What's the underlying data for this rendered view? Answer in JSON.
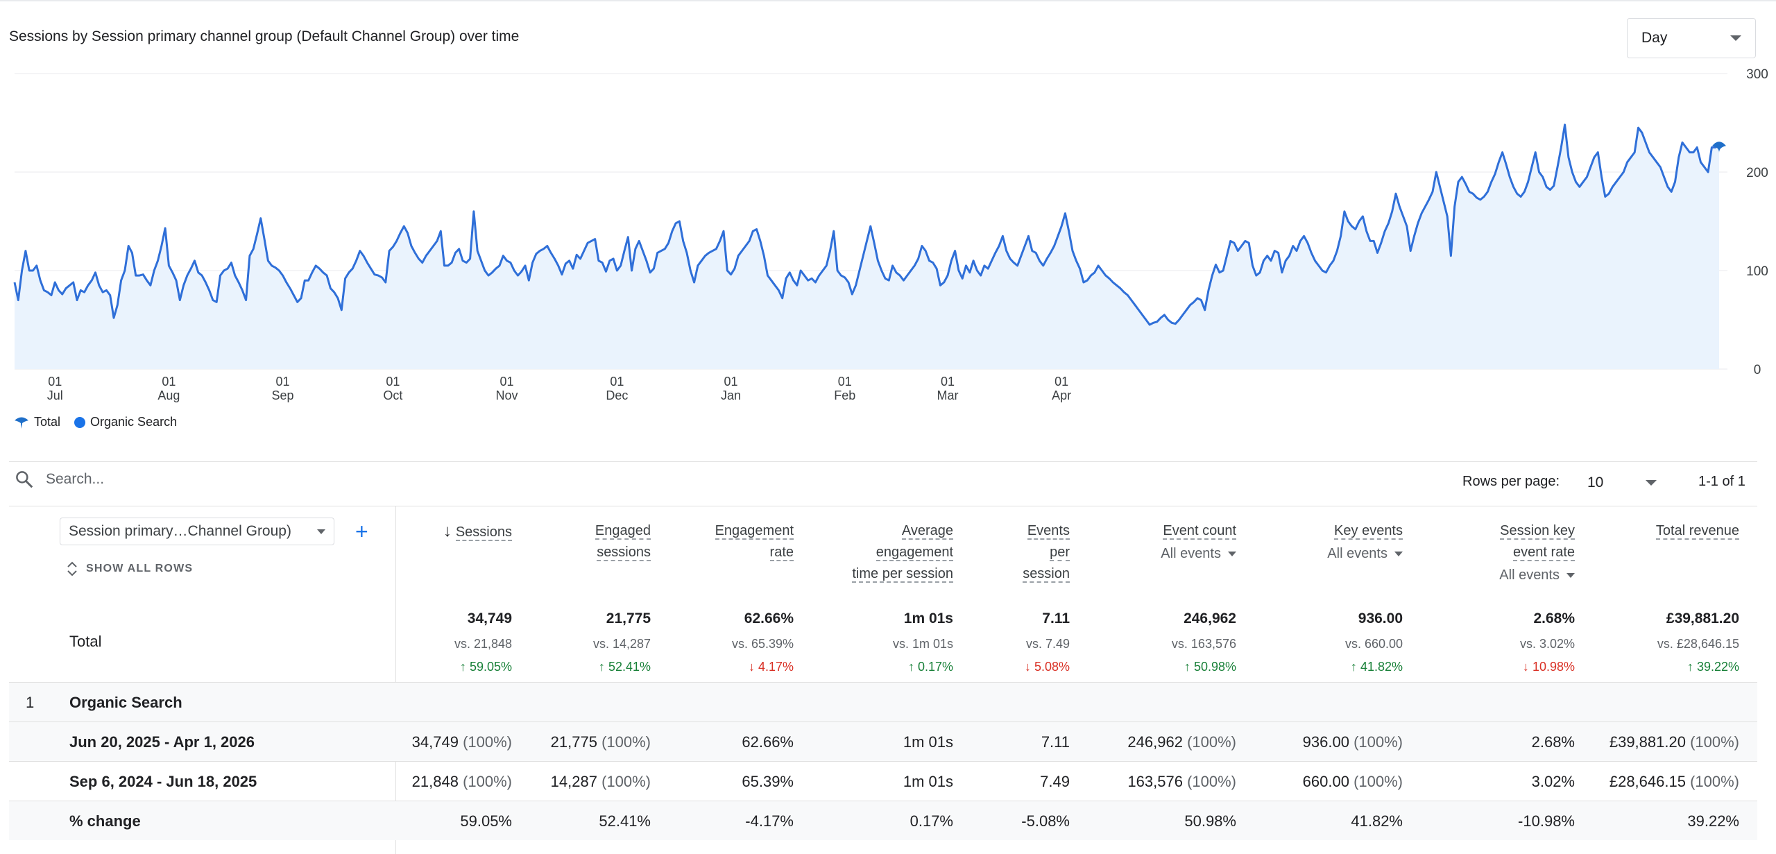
{
  "chart": {
    "title": "Sessions by Session primary channel group (Default Channel Group) over time",
    "granularity": "Day",
    "y_ticks": [
      "300",
      "200",
      "100",
      "0"
    ],
    "x_ticks": [
      {
        "day": "01",
        "month": "Jul"
      },
      {
        "day": "01",
        "month": "Aug"
      },
      {
        "day": "01",
        "month": "Sep"
      },
      {
        "day": "01",
        "month": "Oct"
      },
      {
        "day": "01",
        "month": "Nov"
      },
      {
        "day": "01",
        "month": "Dec"
      },
      {
        "day": "01",
        "month": "Jan"
      },
      {
        "day": "01",
        "month": "Feb"
      },
      {
        "day": "01",
        "month": "Mar"
      },
      {
        "day": "01",
        "month": "Apr"
      }
    ],
    "legend": [
      {
        "label": "Total",
        "icon": "pin-icon"
      },
      {
        "label": "Organic Search",
        "icon": "dot-icon"
      }
    ],
    "line_color": "#2f6fd8",
    "fill_color": "#eaf3fd"
  },
  "chart_data": {
    "type": "area",
    "x_start": "2025-06-20",
    "x_end": "2026-04-01",
    "ylim": [
      0,
      300
    ],
    "grid": true,
    "legend_position": "bottom-left",
    "series": [
      {
        "name": "Organic Search",
        "values": [
          88,
          70,
          100,
          120,
          100,
          100,
          105,
          90,
          80,
          78,
          75,
          88,
          80,
          76,
          82,
          85,
          88,
          70,
          80,
          78,
          85,
          90,
          98,
          85,
          78,
          80,
          75,
          52,
          65,
          90,
          100,
          125,
          118,
          95,
          95,
          96,
          90,
          85,
          100,
          110,
          125,
          143,
          105,
          98,
          90,
          70,
          85,
          95,
          102,
          110,
          98,
          95,
          88,
          80,
          70,
          68,
          95,
          100,
          102,
          108,
          95,
          88,
          80,
          70,
          115,
          122,
          137,
          153,
          132,
          110,
          105,
          103,
          100,
          95,
          88,
          82,
          75,
          68,
          72,
          90,
          90,
          98,
          105,
          102,
          98,
          95,
          82,
          78,
          72,
          60,
          92,
          98,
          102,
          110,
          120,
          115,
          108,
          102,
          96,
          95,
          93,
          88,
          120,
          124,
          130,
          138,
          145,
          138,
          125,
          118,
          112,
          108,
          115,
          120,
          125,
          130,
          140,
          105,
          105,
          108,
          118,
          122,
          110,
          108,
          112,
          160,
          120,
          110,
          100,
          95,
          98,
          102,
          105,
          115,
          110,
          108,
          100,
          95,
          99,
          105,
          90,
          108,
          117,
          120,
          122,
          125,
          118,
          112,
          105,
          96,
          107,
          110,
          102,
          116,
          112,
          120,
          128,
          130,
          132,
          110,
          108,
          99,
          110,
          112,
          100,
          105,
          120,
          134,
          100,
          122,
          130,
          120,
          110,
          98,
          102,
          118,
          120,
          122,
          128,
          140,
          148,
          150,
          130,
          118,
          100,
          88,
          105,
          110,
          115,
          118,
          120,
          122,
          130,
          140,
          100,
          96,
          102,
          115,
          120,
          125,
          130,
          140,
          142,
          130,
          115,
          95,
          90,
          85,
          80,
          72,
          92,
          98,
          90,
          85,
          100,
          95,
          90,
          92,
          88,
          95,
          100,
          105,
          120,
          140,
          100,
          95,
          93,
          88,
          76,
          85,
          100,
          115,
          130,
          145,
          128,
          110,
          100,
          92,
          90,
          105,
          98,
          95,
          90,
          95,
          100,
          105,
          112,
          125,
          120,
          110,
          108,
          102,
          85,
          88,
          95,
          110,
          120,
          100,
          92,
          105,
          98,
          110,
          100,
          95,
          105,
          102,
          110,
          118,
          125,
          135,
          120,
          112,
          108,
          105,
          115,
          125,
          135,
          120,
          118,
          110,
          105,
          112,
          118,
          125,
          135,
          145,
          158,
          140,
          120,
          110,
          102,
          88,
          90,
          95,
          98,
          105,
          100,
          95,
          92,
          88,
          85,
          82,
          78,
          75,
          70,
          65,
          60,
          55,
          50,
          45,
          47,
          48,
          52,
          55,
          50,
          47,
          46,
          50,
          55,
          60,
          65,
          68,
          72,
          70,
          60,
          80,
          95,
          106,
          98,
          100,
          115,
          130,
          128,
          120,
          125,
          130,
          128,
          105,
          95,
          98,
          110,
          115,
          110,
          120,
          118,
          98,
          110,
          115,
          125,
          120,
          130,
          135,
          128,
          118,
          110,
          105,
          100,
          98,
          105,
          110,
          120,
          135,
          160,
          150,
          145,
          142,
          150,
          155,
          140,
          130,
          130,
          118,
          128,
          140,
          148,
          160,
          178,
          165,
          155,
          145,
          120,
          135,
          148,
          158,
          165,
          172,
          180,
          200,
          185,
          170,
          155,
          115,
          165,
          190,
          195,
          188,
          180,
          178,
          174,
          172,
          175,
          180,
          190,
          198,
          210,
          220,
          208,
          195,
          185,
          178,
          175,
          180,
          190,
          205,
          220,
          200,
          195,
          185,
          182,
          186,
          205,
          225,
          248,
          215,
          200,
          190,
          185,
          190,
          195,
          205,
          215,
          220,
          195,
          175,
          178,
          185,
          190,
          195,
          200,
          210,
          215,
          220,
          245,
          240,
          230,
          220,
          215,
          210,
          205,
          195,
          185,
          180,
          190,
          215,
          230,
          225,
          220,
          220,
          225,
          210,
          205,
          200,
          225,
          225,
          228
        ]
      }
    ]
  },
  "toolbar": {
    "search_placeholder": "Search...",
    "rows_per_page_label": "Rows per page:",
    "rows_per_page_value": "10",
    "pagination": "1-1 of 1"
  },
  "table": {
    "dimension_label": "Session primary…Channel Group)",
    "add_button": "+",
    "show_all_rows": "SHOW ALL ROWS",
    "columns": [
      {
        "lines": [
          "Sessions"
        ],
        "sorted": true
      },
      {
        "lines": [
          "Engaged",
          "sessions"
        ]
      },
      {
        "lines": [
          "Engagement",
          "rate"
        ]
      },
      {
        "lines": [
          "Average",
          "engagement",
          "time per session"
        ]
      },
      {
        "lines": [
          "Events",
          "per",
          "session"
        ]
      },
      {
        "lines": [
          "Event count"
        ],
        "selector": "All events"
      },
      {
        "lines": [
          "Key events"
        ],
        "selector": "All events"
      },
      {
        "lines": [
          "Session key",
          "event rate"
        ],
        "selector": "All events"
      },
      {
        "lines": [
          "Total revenue"
        ]
      }
    ],
    "total_label": "Total",
    "totals": [
      {
        "value": "34,749",
        "vs": "vs. 21,848",
        "change": "59.05%",
        "direction": "up"
      },
      {
        "value": "21,775",
        "vs": "vs. 14,287",
        "change": "52.41%",
        "direction": "up"
      },
      {
        "value": "62.66%",
        "vs": "vs. 65.39%",
        "change": "4.17%",
        "direction": "down"
      },
      {
        "value": "1m 01s",
        "vs": "vs. 1m 01s",
        "change": "0.17%",
        "direction": "up"
      },
      {
        "value": "7.11",
        "vs": "vs. 7.49",
        "change": "5.08%",
        "direction": "down"
      },
      {
        "value": "246,962",
        "vs": "vs. 163,576",
        "change": "50.98%",
        "direction": "up"
      },
      {
        "value": "936.00",
        "vs": "vs. 660.00",
        "change": "41.82%",
        "direction": "up"
      },
      {
        "value": "2.68%",
        "vs": "vs. 3.02%",
        "change": "10.98%",
        "direction": "down"
      },
      {
        "value": "£39,881.20",
        "vs": "vs. £28,646.15",
        "change": "39.22%",
        "direction": "up"
      }
    ],
    "group_row": {
      "index": "1",
      "name": "Organic Search"
    },
    "rows": [
      {
        "name": "Jun 20, 2025 - Apr 1, 2026",
        "cells": [
          {
            "v": "34,749",
            "p": "(100%)"
          },
          {
            "v": "21,775",
            "p": "(100%)"
          },
          {
            "v": "62.66%",
            "p": ""
          },
          {
            "v": "1m 01s",
            "p": ""
          },
          {
            "v": "7.11",
            "p": ""
          },
          {
            "v": "246,962",
            "p": "(100%)"
          },
          {
            "v": "936.00",
            "p": "(100%)"
          },
          {
            "v": "2.68%",
            "p": ""
          },
          {
            "v": "£39,881.20",
            "p": "(100%)"
          }
        ]
      },
      {
        "name": "Sep 6, 2024 - Jun 18, 2025",
        "cells": [
          {
            "v": "21,848",
            "p": "(100%)"
          },
          {
            "v": "14,287",
            "p": "(100%)"
          },
          {
            "v": "65.39%",
            "p": ""
          },
          {
            "v": "1m 01s",
            "p": ""
          },
          {
            "v": "7.49",
            "p": ""
          },
          {
            "v": "163,576",
            "p": "(100%)"
          },
          {
            "v": "660.00",
            "p": "(100%)"
          },
          {
            "v": "3.02%",
            "p": ""
          },
          {
            "v": "£28,646.15",
            "p": "(100%)"
          }
        ]
      },
      {
        "name": "% change",
        "cells": [
          {
            "v": "59.05%",
            "p": ""
          },
          {
            "v": "52.41%",
            "p": ""
          },
          {
            "v": "-4.17%",
            "p": ""
          },
          {
            "v": "0.17%",
            "p": ""
          },
          {
            "v": "-5.08%",
            "p": ""
          },
          {
            "v": "50.98%",
            "p": ""
          },
          {
            "v": "41.82%",
            "p": ""
          },
          {
            "v": "-10.98%",
            "p": ""
          },
          {
            "v": "39.22%",
            "p": ""
          }
        ]
      }
    ]
  }
}
